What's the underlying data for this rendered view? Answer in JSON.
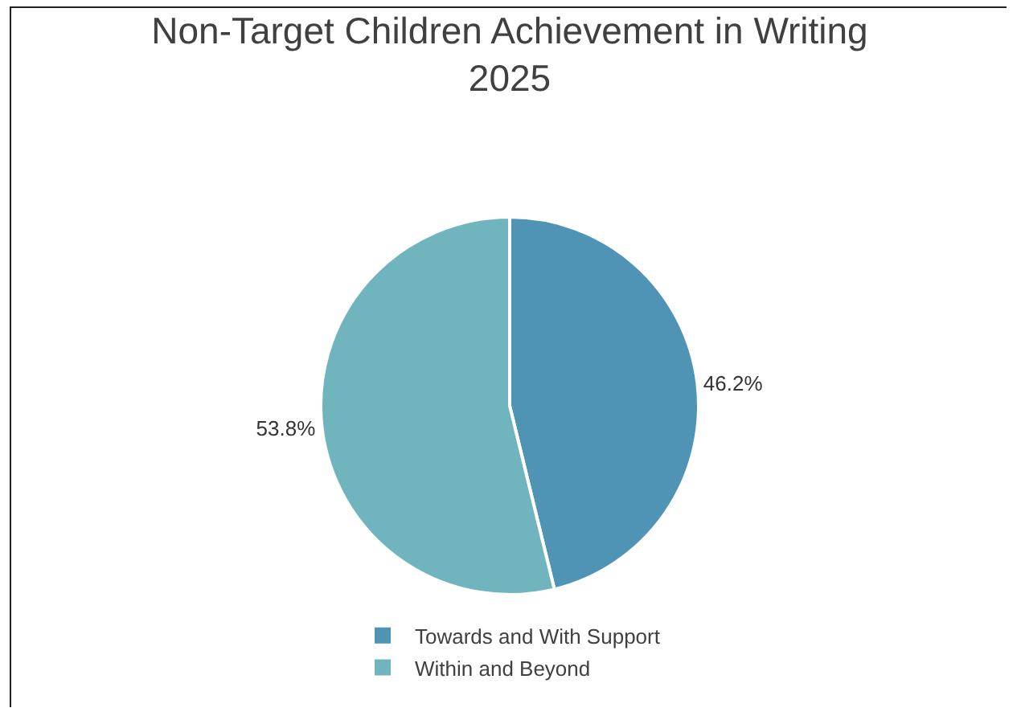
{
  "chart_data": {
    "type": "pie",
    "title": "Non-Target Children Achievement in Writing 2025",
    "categories": [
      "Towards and With Support",
      "Within and Beyond"
    ],
    "values": [
      46.2,
      53.8
    ],
    "value_labels": [
      "46.2%",
      "53.8%"
    ],
    "colors": [
      "#4f93b5",
      "#70b5bd"
    ],
    "legend": "bottom"
  }
}
